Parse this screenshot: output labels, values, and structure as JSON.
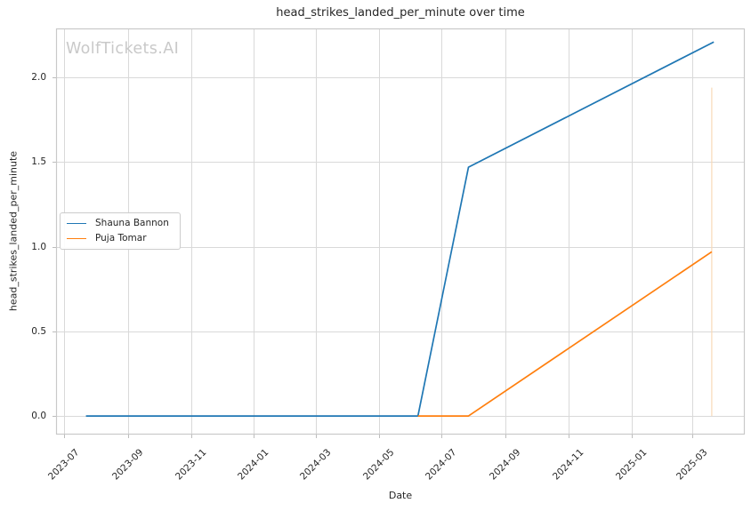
{
  "title": "head_strikes_landed_per_minute over time",
  "watermark": "WolfTickets.AI",
  "axes": {
    "xlabel": "Date",
    "ylabel": "head_strikes_landed_per_minute"
  },
  "colors": {
    "grid": "#d9d9d9",
    "frame": "#c9c9c9",
    "tick_mark": "#bdbdbd",
    "text": "#262626",
    "watermark": "#c9c9c9",
    "background": "#ffffff"
  },
  "chart_data": {
    "type": "line",
    "title": "head_strikes_landed_per_minute over time",
    "xlabel": "Date",
    "ylabel": "head_strikes_landed_per_minute",
    "grid": true,
    "legend_position": "center-left",
    "x_ticks": [
      "2023-07",
      "2023-09",
      "2023-11",
      "2024-01",
      "2024-03",
      "2024-05",
      "2024-07",
      "2024-09",
      "2024-11",
      "2025-01",
      "2025-03"
    ],
    "y_ticks": [
      0.0,
      0.5,
      1.0,
      1.5,
      2.0
    ],
    "xlim": [
      "2023-06-23",
      "2025-04-21"
    ],
    "ylim": [
      -0.11,
      2.29
    ],
    "series": [
      {
        "name": "Shauna Bannon",
        "color": "#1f77b4",
        "points": [
          [
            "2023-07-22",
            0.0
          ],
          [
            "2024-06-08",
            0.0
          ],
          [
            "2024-07-27",
            1.47
          ],
          [
            "2025-03-22",
            2.21
          ]
        ]
      },
      {
        "name": "Puja Tomar",
        "color": "#ff7f0e",
        "points": [
          [
            "2024-06-08",
            0.0
          ],
          [
            "2024-07-27",
            0.0
          ],
          [
            "2025-03-20",
            0.97
          ]
        ]
      }
    ],
    "annotations": [
      {
        "type": "vline",
        "x": "2025-03-20",
        "y0": 0.0,
        "y1": 1.94,
        "color": "#f8d9b8"
      }
    ]
  }
}
